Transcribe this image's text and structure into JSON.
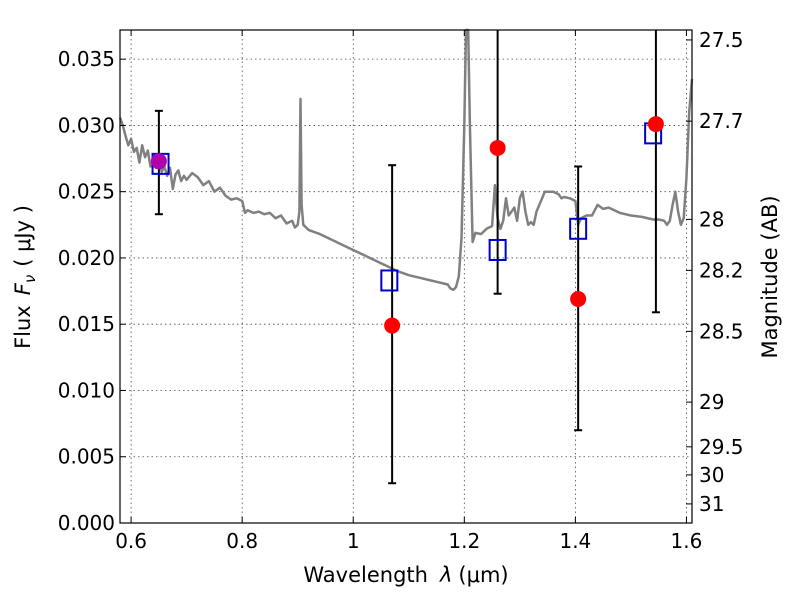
{
  "chart_data": {
    "type": "scatter",
    "xlabel": "Wavelength",
    "xlabel_symbol": "λ",
    "xlabel_unit": "(μm)",
    "ylabel": "Flux",
    "ylabel_symbol": "F",
    "ylabel_subscript": "ν",
    "ylabel_unit": "( μJy )",
    "y2label": "Magnitude (AB)",
    "xlim": [
      0.58,
      1.61
    ],
    "ylim": [
      0.0,
      0.0372
    ],
    "grid": true,
    "x_ticks": [
      {
        "value": 0.6,
        "label": "0.6"
      },
      {
        "value": 0.8,
        "label": "0.8"
      },
      {
        "value": 1.0,
        "label": "1"
      },
      {
        "value": 1.2,
        "label": "1.2"
      },
      {
        "value": 1.4,
        "label": "1.4"
      },
      {
        "value": 1.6,
        "label": "1.6"
      }
    ],
    "y_ticks": [
      {
        "value": 0.0,
        "label": "0.000"
      },
      {
        "value": 0.005,
        "label": "0.005"
      },
      {
        "value": 0.01,
        "label": "0.010"
      },
      {
        "value": 0.015,
        "label": "0.015"
      },
      {
        "value": 0.02,
        "label": "0.020"
      },
      {
        "value": 0.025,
        "label": "0.025"
      },
      {
        "value": 0.03,
        "label": "0.030"
      },
      {
        "value": 0.035,
        "label": "0.035"
      }
    ],
    "y2_ticks": [
      {
        "flux": 0.03645,
        "label": "27.5"
      },
      {
        "flux": 0.03032,
        "label": "27.7"
      },
      {
        "flux": 0.02291,
        "label": "28"
      },
      {
        "flux": 0.01906,
        "label": "28.2"
      },
      {
        "flux": 0.01446,
        "label": "28.5"
      },
      {
        "flux": 0.00912,
        "label": "29"
      },
      {
        "flux": 0.00575,
        "label": "29.5"
      },
      {
        "flux": 0.00363,
        "label": "30"
      },
      {
        "flux": 0.00144,
        "label": "31"
      }
    ],
    "series": [
      {
        "kind": "line",
        "color": "#808080",
        "points": [
          [
            0.58,
            0.0306
          ],
          [
            0.585,
            0.03
          ],
          [
            0.59,
            0.0292
          ],
          [
            0.595,
            0.0285
          ],
          [
            0.6,
            0.029
          ],
          [
            0.605,
            0.028
          ],
          [
            0.61,
            0.0283
          ],
          [
            0.615,
            0.0272
          ],
          [
            0.62,
            0.0285
          ],
          [
            0.625,
            0.0276
          ],
          [
            0.63,
            0.0281
          ],
          [
            0.635,
            0.0269
          ],
          [
            0.64,
            0.0276
          ],
          [
            0.645,
            0.0268
          ],
          [
            0.65,
            0.0273
          ],
          [
            0.655,
            0.0265
          ],
          [
            0.66,
            0.0269
          ],
          [
            0.665,
            0.0262
          ],
          [
            0.67,
            0.0268
          ],
          [
            0.675,
            0.0252
          ],
          [
            0.68,
            0.0263
          ],
          [
            0.685,
            0.0266
          ],
          [
            0.69,
            0.0258
          ],
          [
            0.695,
            0.0262
          ],
          [
            0.7,
            0.0259
          ],
          [
            0.71,
            0.0264
          ],
          [
            0.72,
            0.0261
          ],
          [
            0.73,
            0.0255
          ],
          [
            0.74,
            0.0258
          ],
          [
            0.75,
            0.025
          ],
          [
            0.76,
            0.0253
          ],
          [
            0.77,
            0.0247
          ],
          [
            0.78,
            0.0244
          ],
          [
            0.79,
            0.0245
          ],
          [
            0.8,
            0.0243
          ],
          [
            0.805,
            0.0234
          ],
          [
            0.81,
            0.0236
          ],
          [
            0.82,
            0.0234
          ],
          [
            0.83,
            0.0235
          ],
          [
            0.84,
            0.0233
          ],
          [
            0.85,
            0.0234
          ],
          [
            0.86,
            0.023
          ],
          [
            0.87,
            0.0232
          ],
          [
            0.88,
            0.0226
          ],
          [
            0.89,
            0.0228
          ],
          [
            0.895,
            0.0223
          ],
          [
            0.9,
            0.0225
          ],
          [
            0.903,
            0.0235
          ],
          [
            0.905,
            0.032
          ],
          [
            0.907,
            0.024
          ],
          [
            0.91,
            0.0225
          ],
          [
            0.92,
            0.0221
          ],
          [
            0.94,
            0.0218
          ],
          [
            0.96,
            0.0214
          ],
          [
            0.98,
            0.021
          ],
          [
            1.0,
            0.0206
          ],
          [
            1.02,
            0.0202
          ],
          [
            1.04,
            0.0198
          ],
          [
            1.06,
            0.0194
          ],
          [
            1.08,
            0.019
          ],
          [
            1.1,
            0.0187
          ],
          [
            1.12,
            0.0185
          ],
          [
            1.14,
            0.0183
          ],
          [
            1.15,
            0.0182
          ],
          [
            1.16,
            0.0181
          ],
          [
            1.17,
            0.018
          ],
          [
            1.175,
            0.0177
          ],
          [
            1.18,
            0.0176
          ],
          [
            1.185,
            0.0178
          ],
          [
            1.19,
            0.0186
          ],
          [
            1.195,
            0.0215
          ],
          [
            1.2,
            0.03
          ],
          [
            1.203,
            0.0372
          ],
          [
            1.207,
            0.0372
          ],
          [
            1.21,
            0.03
          ],
          [
            1.215,
            0.0212
          ],
          [
            1.22,
            0.0219
          ],
          [
            1.23,
            0.0218
          ],
          [
            1.24,
            0.0222
          ],
          [
            1.25,
            0.0224
          ],
          [
            1.255,
            0.0255
          ],
          [
            1.26,
            0.023
          ],
          [
            1.265,
            0.0222
          ],
          [
            1.27,
            0.0228
          ],
          [
            1.275,
            0.0245
          ],
          [
            1.28,
            0.0232
          ],
          [
            1.29,
            0.0238
          ],
          [
            1.295,
            0.0228
          ],
          [
            1.3,
            0.0245
          ],
          [
            1.305,
            0.025
          ],
          [
            1.31,
            0.0235
          ],
          [
            1.315,
            0.0225
          ],
          [
            1.32,
            0.0227
          ],
          [
            1.325,
            0.0225
          ],
          [
            1.33,
            0.0235
          ],
          [
            1.34,
            0.0245
          ],
          [
            1.345,
            0.025
          ],
          [
            1.35,
            0.025
          ],
          [
            1.36,
            0.025
          ],
          [
            1.37,
            0.0248
          ],
          [
            1.375,
            0.0245
          ],
          [
            1.38,
            0.0246
          ],
          [
            1.39,
            0.0245
          ],
          [
            1.4,
            0.0243
          ],
          [
            1.405,
            0.0225
          ],
          [
            1.41,
            0.023
          ],
          [
            1.42,
            0.0232
          ],
          [
            1.43,
            0.0232
          ],
          [
            1.435,
            0.0236
          ],
          [
            1.44,
            0.024
          ],
          [
            1.45,
            0.0237
          ],
          [
            1.46,
            0.0238
          ],
          [
            1.47,
            0.0236
          ],
          [
            1.48,
            0.0234
          ],
          [
            1.49,
            0.0233
          ],
          [
            1.5,
            0.0232
          ],
          [
            1.52,
            0.0231
          ],
          [
            1.54,
            0.0229
          ],
          [
            1.55,
            0.0229
          ],
          [
            1.56,
            0.0228
          ],
          [
            1.565,
            0.0225
          ],
          [
            1.57,
            0.0228
          ],
          [
            1.575,
            0.024
          ],
          [
            1.58,
            0.025
          ],
          [
            1.585,
            0.0235
          ],
          [
            1.59,
            0.0225
          ],
          [
            1.595,
            0.023
          ],
          [
            1.6,
            0.026
          ],
          [
            1.605,
            0.031
          ],
          [
            1.61,
            0.0335
          ]
        ]
      },
      {
        "kind": "points",
        "marker": "circle",
        "color": "#ff0000",
        "points": [
          {
            "x": 0.65,
            "y": 0.0273,
            "yerr_low": 0.0233,
            "yerr_high": 0.0311,
            "color": "#b000b0"
          },
          {
            "x": 1.07,
            "y": 0.0149,
            "yerr_low": 0.003,
            "yerr_high": 0.027
          },
          {
            "x": 1.26,
            "y": 0.0283,
            "yerr_low": 0.0173,
            "yerr_high": 0.0372
          },
          {
            "x": 1.405,
            "y": 0.0169,
            "yerr_low": 0.007,
            "yerr_high": 0.0269
          },
          {
            "x": 1.545,
            "y": 0.0301,
            "yerr_low": 0.0159,
            "yerr_high": 0.0372
          }
        ]
      },
      {
        "kind": "points",
        "marker": "open-square",
        "color": "#0000cc",
        "points": [
          {
            "x": 0.653,
            "y": 0.0271
          },
          {
            "x": 1.065,
            "y": 0.0183
          },
          {
            "x": 1.26,
            "y": 0.0206
          },
          {
            "x": 1.405,
            "y": 0.0222
          },
          {
            "x": 1.54,
            "y": 0.0294
          }
        ]
      }
    ]
  }
}
